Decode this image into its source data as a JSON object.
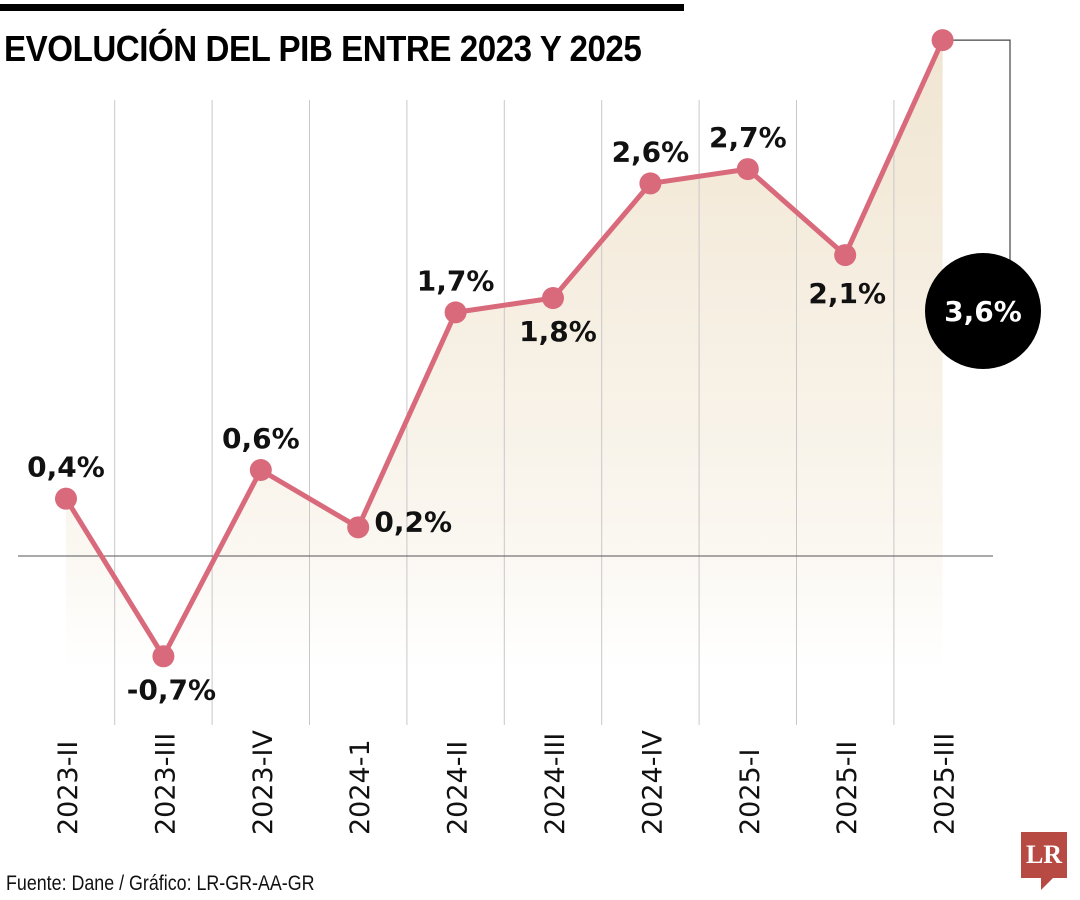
{
  "title": "EVOLUCIÓN DEL PIB ENTRE 2023 Y 2025",
  "source": "Fuente: Dane / Gráfico: LR-GR-AA-GR",
  "logo": "LR",
  "colors": {
    "line": "#d96a7c",
    "fill": "#f0e4cf",
    "highlight": "#000000",
    "logo": "#b84a44"
  },
  "chart_data": {
    "type": "line",
    "title": "EVOLUCIÓN DEL PIB ENTRE 2023 Y 2025",
    "categories": [
      "2023-II",
      "2023-III",
      "2023-IV",
      "2024-1",
      "2024-II",
      "2024-III",
      "2024-IV",
      "2025-I",
      "2025-II",
      "2025-III"
    ],
    "values": [
      0.4,
      -0.7,
      0.6,
      0.2,
      1.7,
      1.8,
      2.6,
      2.7,
      2.1,
      3.6
    ],
    "labels": [
      "0,4%",
      "-0,7%",
      "0,6%",
      "0,2%",
      "1,7%",
      "1,8%",
      "2,6%",
      "2,7%",
      "2,1%",
      "3,6%"
    ],
    "highlight_index": 9,
    "ylim": [
      -0.7,
      3.6
    ],
    "grid": "vertical",
    "zero_line": true
  }
}
